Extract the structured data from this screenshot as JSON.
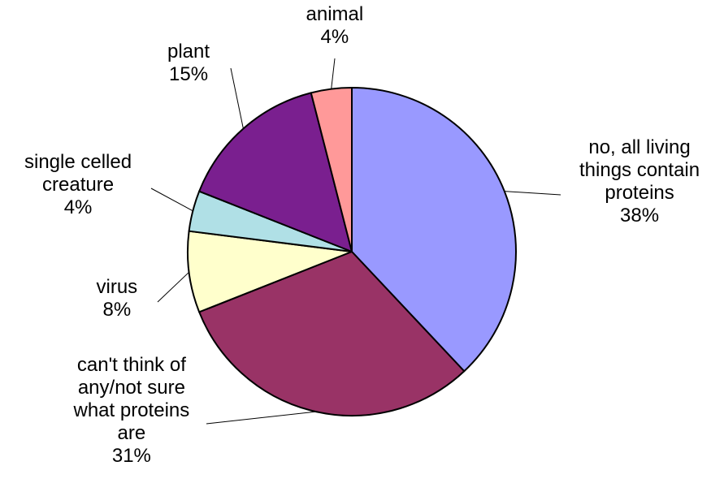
{
  "chart_data": {
    "type": "pie",
    "title": "",
    "slices": [
      {
        "name": "no, all living things contain proteins",
        "value": 38,
        "pct_label": "38%",
        "color": "#9999ff"
      },
      {
        "name": "can't think of any/not sure what proteins are",
        "value": 31,
        "pct_label": "31%",
        "color": "#993366"
      },
      {
        "name": "virus",
        "value": 8,
        "pct_label": "8%",
        "color": "#ffffcc"
      },
      {
        "name": "single celled creature",
        "value": 4,
        "pct_label": "4%",
        "color": "#b0e0e6"
      },
      {
        "name": "plant",
        "value": 15,
        "pct_label": "15%",
        "color": "#7a1f8f"
      },
      {
        "name": "animal",
        "value": 4,
        "pct_label": "4%",
        "color": "#ff9999"
      }
    ],
    "labels": [
      {
        "lines": [
          "no, all living",
          "things contain",
          "proteins",
          "38%"
        ]
      },
      {
        "lines": [
          "can't think of",
          "any/not sure",
          "what proteins",
          "are",
          "31%"
        ]
      },
      {
        "lines": [
          "virus",
          "8%"
        ]
      },
      {
        "lines": [
          "single celled",
          "creature",
          "4%"
        ]
      },
      {
        "lines": [
          "plant",
          "15%"
        ]
      },
      {
        "lines": [
          "animal",
          "4%"
        ]
      }
    ],
    "legend": "none",
    "start": "top",
    "direction": "clockwise"
  }
}
